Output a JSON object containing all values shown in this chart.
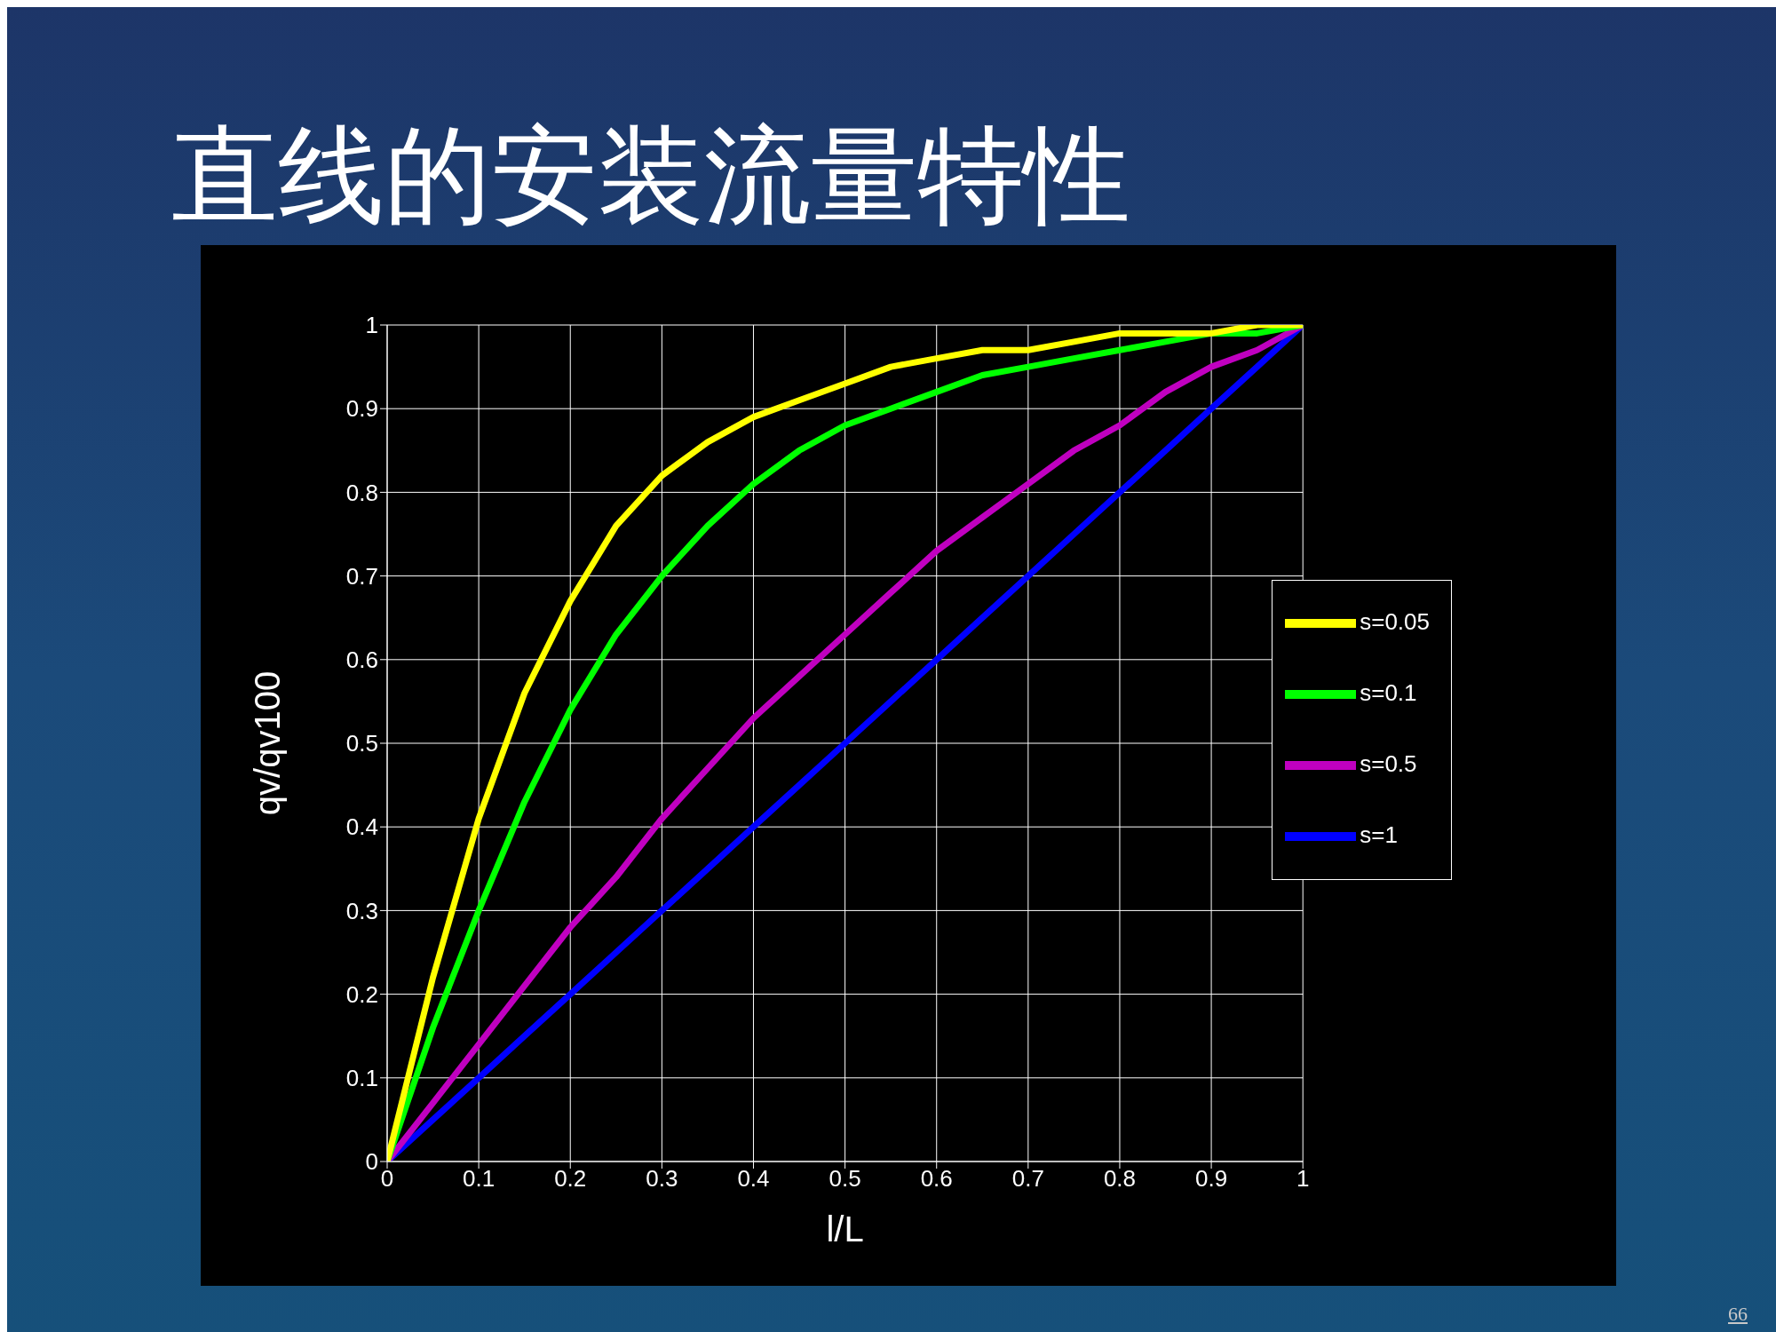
{
  "chart_data": {
    "type": "line",
    "title": "直线的安装流量特性",
    "xlabel": "l/L",
    "ylabel": "qv/qv100",
    "x": [
      0,
      0.05,
      0.1,
      0.15,
      0.2,
      0.25,
      0.3,
      0.35,
      0.4,
      0.45,
      0.5,
      0.55,
      0.6,
      0.65,
      0.7,
      0.75,
      0.8,
      0.85,
      0.9,
      0.95,
      1
    ],
    "series": [
      {
        "name": "s=1",
        "color": "#0000ff",
        "values": [
          0,
          0.05,
          0.1,
          0.15,
          0.2,
          0.25,
          0.3,
          0.35,
          0.4,
          0.45,
          0.5,
          0.55,
          0.6,
          0.65,
          0.7,
          0.75,
          0.8,
          0.85,
          0.9,
          0.95,
          1
        ]
      },
      {
        "name": "s=0.5",
        "color": "#c000c0",
        "values": [
          0,
          0.07,
          0.14,
          0.21,
          0.28,
          0.34,
          0.41,
          0.47,
          0.53,
          0.58,
          0.63,
          0.68,
          0.73,
          0.77,
          0.81,
          0.85,
          0.88,
          0.92,
          0.95,
          0.97,
          1
        ]
      },
      {
        "name": "s=0.1",
        "color": "#00ff00",
        "values": [
          0,
          0.16,
          0.3,
          0.43,
          0.54,
          0.63,
          0.7,
          0.76,
          0.81,
          0.85,
          0.88,
          0.9,
          0.92,
          0.94,
          0.95,
          0.96,
          0.97,
          0.98,
          0.99,
          0.99,
          1
        ]
      },
      {
        "name": "s=0.05",
        "color": "#ffff00",
        "values": [
          0,
          0.22,
          0.41,
          0.56,
          0.67,
          0.76,
          0.82,
          0.86,
          0.89,
          0.91,
          0.93,
          0.95,
          0.96,
          0.97,
          0.97,
          0.98,
          0.99,
          0.99,
          0.99,
          1,
          1
        ]
      }
    ],
    "xlim": [
      0,
      1
    ],
    "xticks": [
      0,
      0.1,
      0.2,
      0.3,
      0.4,
      0.5,
      0.6,
      0.7,
      0.8,
      0.9,
      1
    ],
    "ylim": [
      0,
      1
    ],
    "yticks": [
      0,
      0.1,
      0.2,
      0.3,
      0.4,
      0.5,
      0.6,
      0.7,
      0.8,
      0.9,
      1
    ],
    "grid": true,
    "legend": "right",
    "marker": "none",
    "line_style": "solid",
    "annotations": [
      "66"
    ]
  }
}
